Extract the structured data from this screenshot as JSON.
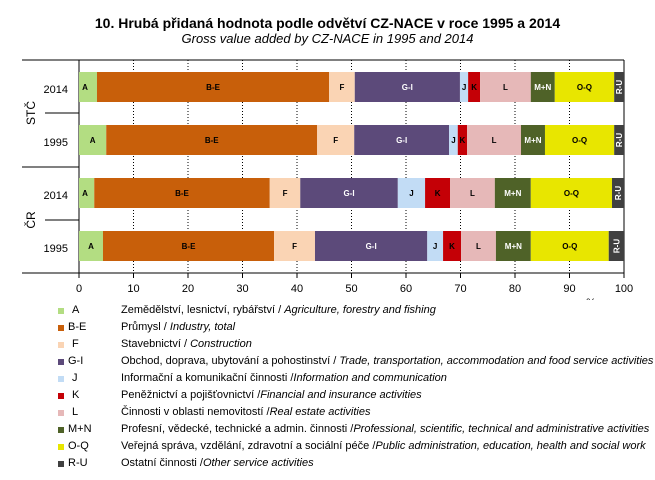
{
  "header": {
    "title": "10. Hrubá přidaná hodnota podle odvětví CZ-NACE  v roce 1995 a 2014",
    "subtitle": "Gross value added by CZ-NACE  in 1995 and 2014"
  },
  "chart_data": {
    "type": "bar",
    "orientation": "horizontal-stacked-100",
    "title": "10. Hrubá přidaná hodnota podle odvětví CZ-NACE  v roce 1995 a 2014",
    "subtitle": "Gross value added by CZ-NACE  in 1995 and 2014",
    "xlabel": "%",
    "ylabel": "",
    "xlim": [
      0,
      100
    ],
    "xticks": [
      "0",
      "10",
      "20",
      "30",
      "40",
      "50",
      "60",
      "70",
      "80",
      "90",
      "100"
    ],
    "grid": "vertical dotted",
    "groups": [
      {
        "name": "STČ",
        "categories": [
          "2014",
          "1995"
        ]
      },
      {
        "name": "ČR",
        "categories": [
          "2014",
          "1995"
        ]
      }
    ],
    "categories": [
      "STČ 2014",
      "STČ 1995",
      "ČR 2014",
      "ČR 1995"
    ],
    "series": [
      {
        "name": "A",
        "color": "#b3dd82",
        "values": [
          3.3,
          5.0,
          2.8,
          4.4
        ]
      },
      {
        "name": "B-E",
        "color": "#c85f0a",
        "values": [
          42.6,
          38.7,
          32.2,
          31.4
        ]
      },
      {
        "name": "F",
        "color": "#fad4b4",
        "values": [
          4.7,
          6.8,
          5.6,
          7.5
        ]
      },
      {
        "name": "G-I",
        "color": "#5c4a7a",
        "values": [
          19.3,
          17.4,
          17.9,
          20.6
        ]
      },
      {
        "name": "J",
        "color": "#c2dcf5",
        "values": [
          1.5,
          1.6,
          5.0,
          2.9
        ]
      },
      {
        "name": "K",
        "color": "#c40006",
        "values": [
          2.2,
          1.7,
          4.6,
          3.3
        ]
      },
      {
        "name": "L",
        "color": "#e6b8b8",
        "values": [
          9.3,
          9.9,
          8.2,
          6.4
        ]
      },
      {
        "name": "M+N",
        "color": "#4f6228",
        "values": [
          4.4,
          4.4,
          6.6,
          6.4
        ]
      },
      {
        "name": "O-Q",
        "color": "#e8e600",
        "values": [
          10.9,
          12.7,
          14.9,
          14.3
        ]
      },
      {
        "name": "R-U",
        "color": "#404040",
        "values": [
          1.8,
          1.8,
          2.2,
          2.8
        ]
      }
    ],
    "legend_position": "bottom"
  },
  "legend": [
    {
      "code": "A",
      "cz": "Zemědělství, lesnictví, rybářství / ",
      "en": "Agriculture, forestry and fishing"
    },
    {
      "code": "B-E",
      "cz": "Průmysl / ",
      "en": "Industry, total"
    },
    {
      "code": "F",
      "cz": "Stavebnictví / ",
      "en": "Construction"
    },
    {
      "code": "G-I",
      "cz": "Obchod, doprava, ubytování a pohostinství / ",
      "en": "Trade, transportation, accommodation and food service activities"
    },
    {
      "code": "J",
      "cz": "Informační a komunikační činnosti /",
      "en": "Information and communication"
    },
    {
      "code": "K",
      "cz": "Peněžnictví a pojišťovnictví /",
      "en": "Financial and insurance activities"
    },
    {
      "code": "L",
      "cz": "Činnosti v oblasti nemovitostí /",
      "en": "Real estate activities"
    },
    {
      "code": "M+N",
      "cz": "Profesní, vědecké, technické a admin. činnosti /",
      "en": "Professional, scientific, technical and administrative activities"
    },
    {
      "code": "O-Q",
      "cz": "Veřejná správa, vzdělání, zdravotní a sociální péče /",
      "en": "Public administration, education, health and social work"
    },
    {
      "code": "R-U",
      "cz": "Ostatní činnosti /",
      "en": "Other service activities"
    }
  ]
}
